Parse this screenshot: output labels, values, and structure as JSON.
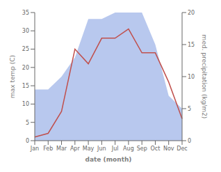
{
  "chart_data": {
    "type": "line",
    "categories": [
      "Jan",
      "Feb",
      "Mar",
      "Apr",
      "May",
      "Jun",
      "Jul",
      "Aug",
      "Sep",
      "Oct",
      "Nov",
      "Dec"
    ],
    "series": [
      {
        "type": "area",
        "color": "#b8c8ee",
        "axis": "y2",
        "values": [
          8,
          8,
          10,
          13,
          19,
          19,
          20,
          20,
          20,
          15,
          7,
          5
        ]
      },
      {
        "type": "line",
        "color": "#c0504d",
        "axis": "y",
        "values": [
          1,
          2,
          8,
          25,
          21,
          28,
          28,
          30.5,
          24,
          24,
          16,
          6
        ]
      }
    ],
    "xlabel": "date (month)",
    "ylabel": "max temp (C)",
    "y2label": "med. precipitation (kg/m2)",
    "ylim": [
      0,
      35
    ],
    "yticks": [
      0,
      5,
      10,
      15,
      20,
      25,
      30,
      35
    ],
    "y2lim": [
      0,
      20
    ],
    "y2ticks": [
      0,
      5,
      10,
      15,
      20
    ],
    "grid": false
  }
}
